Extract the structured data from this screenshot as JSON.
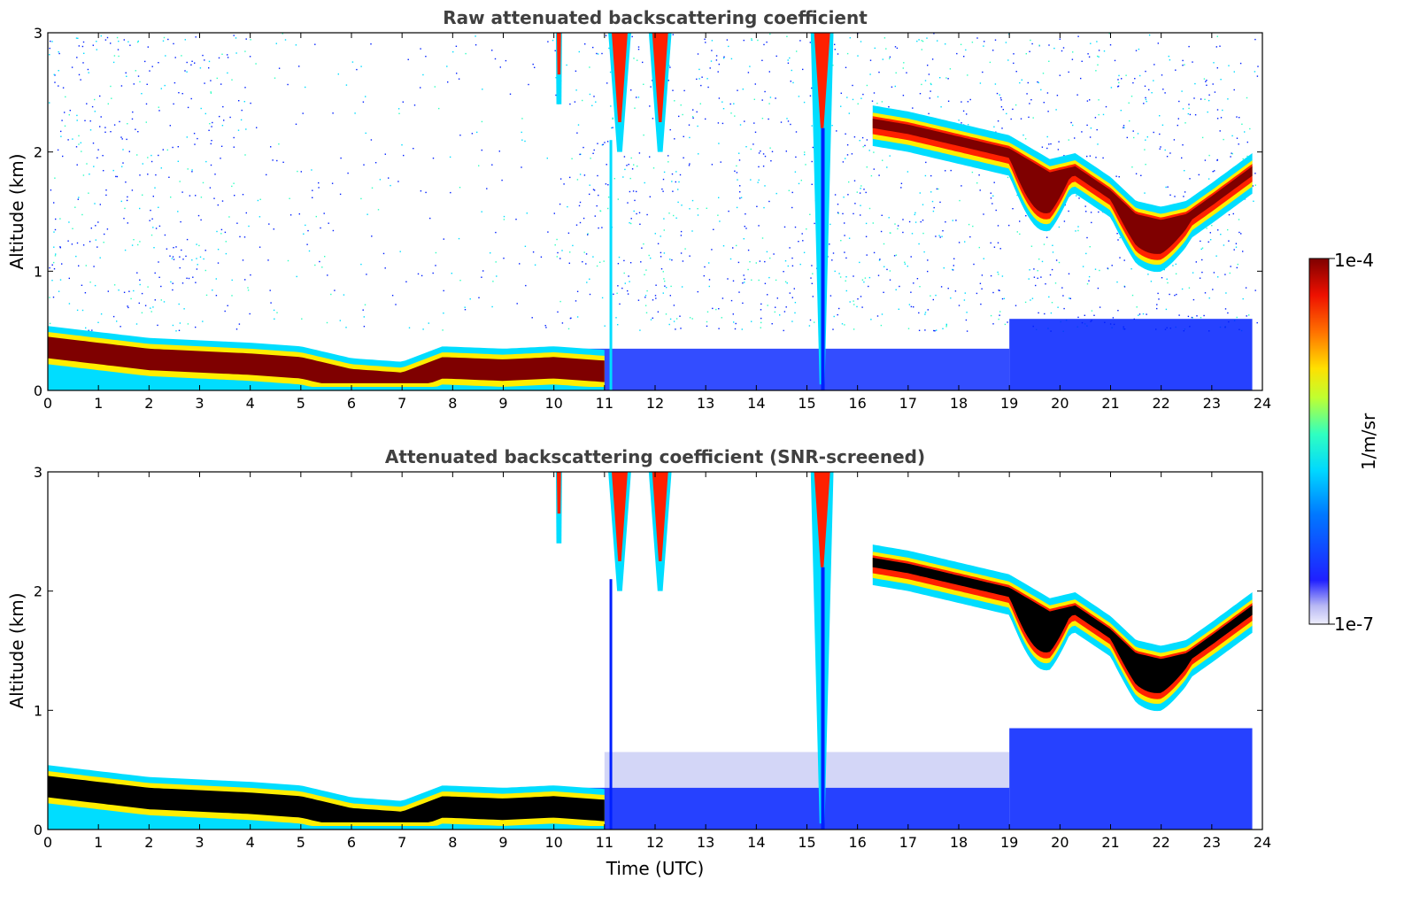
{
  "chart_data": [
    {
      "type": "heatmap",
      "title": "Raw attenuated backscattering coefficient",
      "xlabel": "",
      "ylabel": "Altitude (km)",
      "xlim": [
        0,
        24
      ],
      "ylim": [
        0,
        3
      ],
      "x_ticks": [
        "0",
        "1",
        "2",
        "3",
        "4",
        "5",
        "6",
        "7",
        "8",
        "9",
        "10",
        "11",
        "12",
        "13",
        "14",
        "15",
        "16",
        "17",
        "18",
        "19",
        "20",
        "21",
        "22",
        "23",
        "24"
      ],
      "y_ticks": [
        "0",
        "1",
        "2",
        "3"
      ],
      "screened": false,
      "layers": {
        "boundary_layer_top_km": [
          {
            "t": 0,
            "z": 0.52
          },
          {
            "t": 2,
            "z": 0.42
          },
          {
            "t": 4,
            "z": 0.38
          },
          {
            "t": 5,
            "z": 0.35
          },
          {
            "t": 6,
            "z": 0.25
          },
          {
            "t": 7,
            "z": 0.22
          },
          {
            "t": 7.8,
            "z": 0.35
          },
          {
            "t": 9,
            "z": 0.33
          },
          {
            "t": 10,
            "z": 0.35
          },
          {
            "t": 11,
            "z": 0.32
          }
        ],
        "elevated_layer_km": [
          {
            "t": 16.3,
            "z": 2.25
          },
          {
            "t": 17,
            "z": 2.2
          },
          {
            "t": 18,
            "z": 2.1
          },
          {
            "t": 19,
            "z": 2.0
          },
          {
            "t": 19.8,
            "z": 1.8
          },
          {
            "t": 20.3,
            "z": 1.85
          },
          {
            "t": 21,
            "z": 1.65
          },
          {
            "t": 21.5,
            "z": 1.45
          },
          {
            "t": 22,
            "z": 1.4
          },
          {
            "t": 22.5,
            "z": 1.45
          },
          {
            "t": 23,
            "z": 1.6
          },
          {
            "t": 23.8,
            "z": 1.85
          }
        ],
        "precipitation_streaks_utc": [
          10.1,
          11.3,
          12.1,
          15.3
        ]
      }
    },
    {
      "type": "heatmap",
      "title": "Attenuated backscattering coefficient (SNR-screened)",
      "xlabel": "Time (UTC)",
      "ylabel": "Altitude (km)",
      "xlim": [
        0,
        24
      ],
      "ylim": [
        0,
        3
      ],
      "x_ticks": [
        "0",
        "1",
        "2",
        "3",
        "4",
        "5",
        "6",
        "7",
        "8",
        "9",
        "10",
        "11",
        "12",
        "13",
        "14",
        "15",
        "16",
        "17",
        "18",
        "19",
        "20",
        "21",
        "22",
        "23",
        "24"
      ],
      "y_ticks": [
        "0",
        "1",
        "2",
        "3"
      ],
      "screened": true
    }
  ],
  "colorbar": {
    "label": "1/m/sr",
    "max_label": "1e-4",
    "min_label": "1e-7",
    "colormap": "jet",
    "scale": "log"
  },
  "colors": {
    "dark_red": "#7f0000",
    "red": "#ff2000",
    "yellow": "#ffee00",
    "cyan": "#00ddff",
    "blue": "#0020ff",
    "light_blue": "#c8ccf5",
    "saturated_black": "#000000"
  }
}
